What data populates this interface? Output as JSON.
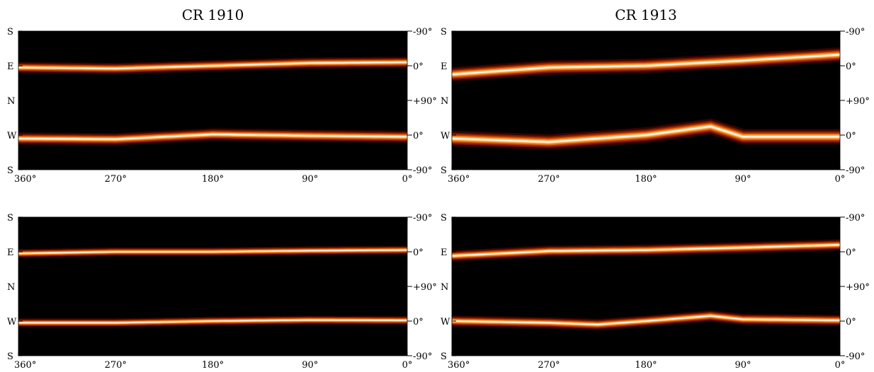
{
  "colors": {
    "background": "#000000",
    "axis": "#000000"
  },
  "colormap": [
    "#000000",
    "#3a0400",
    "#7a1a00",
    "#b83a00",
    "#e46a10",
    "#f79a3a",
    "#ffd090",
    "#ffffff"
  ],
  "chart_data": [
    {
      "type": "heatmap",
      "title": "CR 1910",
      "xticks": [
        "360°",
        "270°",
        "180°",
        "90°",
        "0°"
      ],
      "xtick_values": [
        360,
        270,
        180,
        90,
        0
      ],
      "left_labels": [
        "S",
        "E",
        "N",
        "W",
        "S"
      ],
      "right_labels": [
        "-90°",
        "0°",
        "+90°",
        "0°",
        "-90°"
      ],
      "xlim": [
        360,
        0
      ],
      "ylim": [
        0,
        4
      ],
      "bands": [
        {
          "center": [
            [
              360,
              1.05
            ],
            [
              270,
              1.08
            ],
            [
              180,
              1.0
            ],
            [
              90,
              0.92
            ],
            [
              0,
              0.9
            ]
          ],
          "width": 0.1,
          "intensity": 0.95
        },
        {
          "center": [
            [
              360,
              3.1
            ],
            [
              270,
              3.12
            ],
            [
              180,
              2.98
            ],
            [
              90,
              3.02
            ],
            [
              0,
              3.05
            ]
          ],
          "width": 0.11,
          "intensity": 0.92
        }
      ]
    },
    {
      "type": "heatmap",
      "title": "CR 1913",
      "xticks": [
        "360°",
        "270°",
        "180°",
        "90°",
        "0°"
      ],
      "xtick_values": [
        360,
        270,
        180,
        90,
        0
      ],
      "left_labels": [
        "S",
        "E",
        "N",
        "W",
        "S"
      ],
      "right_labels": [
        "-90°",
        "0°",
        "+90°",
        "0°",
        "-90°"
      ],
      "xlim": [
        360,
        0
      ],
      "ylim": [
        0,
        4
      ],
      "bands": [
        {
          "center": [
            [
              360,
              1.25
            ],
            [
              270,
              1.05
            ],
            [
              180,
              1.0
            ],
            [
              90,
              0.85
            ],
            [
              0,
              0.68
            ]
          ],
          "width": 0.13,
          "intensity": 0.9
        },
        {
          "center": [
            [
              360,
              3.1
            ],
            [
              270,
              3.2
            ],
            [
              180,
              3.0
            ],
            [
              120,
              2.75
            ],
            [
              90,
              3.05
            ],
            [
              0,
              3.05
            ]
          ],
          "width": 0.14,
          "intensity": 0.88
        }
      ]
    },
    {
      "type": "heatmap",
      "xticks": [
        "360°",
        "270°",
        "180°",
        "90°",
        "0°"
      ],
      "xtick_values": [
        360,
        270,
        180,
        90,
        0
      ],
      "left_labels": [
        "S",
        "E",
        "N",
        "W",
        "S"
      ],
      "right_labels": [
        "-90°",
        "0°",
        "+90°",
        "0°",
        "-90°"
      ],
      "xlim": [
        360,
        0
      ],
      "ylim": [
        0,
        4
      ],
      "bands": [
        {
          "center": [
            [
              360,
              1.05
            ],
            [
              270,
              1.0
            ],
            [
              180,
              1.0
            ],
            [
              90,
              0.97
            ],
            [
              0,
              0.95
            ]
          ],
          "width": 0.08,
          "intensity": 1.0
        },
        {
          "center": [
            [
              360,
              3.05
            ],
            [
              270,
              3.05
            ],
            [
              180,
              3.0
            ],
            [
              90,
              2.97
            ],
            [
              0,
              2.98
            ]
          ],
          "width": 0.08,
          "intensity": 1.0
        }
      ]
    },
    {
      "type": "heatmap",
      "xticks": [
        "360°",
        "270°",
        "180°",
        "90°",
        "0°"
      ],
      "xtick_values": [
        360,
        270,
        180,
        90,
        0
      ],
      "left_labels": [
        "S",
        "E",
        "N",
        "W",
        "S"
      ],
      "right_labels": [
        "-90°",
        "0°",
        "+90°",
        "0°",
        "-90°"
      ],
      "xlim": [
        360,
        0
      ],
      "ylim": [
        0,
        4
      ],
      "bands": [
        {
          "center": [
            [
              360,
              1.12
            ],
            [
              270,
              0.98
            ],
            [
              180,
              0.95
            ],
            [
              90,
              0.88
            ],
            [
              0,
              0.8
            ]
          ],
          "width": 0.1,
          "intensity": 1.0
        },
        {
          "center": [
            [
              360,
              3.0
            ],
            [
              270,
              3.05
            ],
            [
              225,
              3.1
            ],
            [
              180,
              3.0
            ],
            [
              120,
              2.85
            ],
            [
              90,
              2.95
            ],
            [
              0,
              2.98
            ]
          ],
          "width": 0.1,
          "intensity": 1.0
        }
      ]
    }
  ]
}
